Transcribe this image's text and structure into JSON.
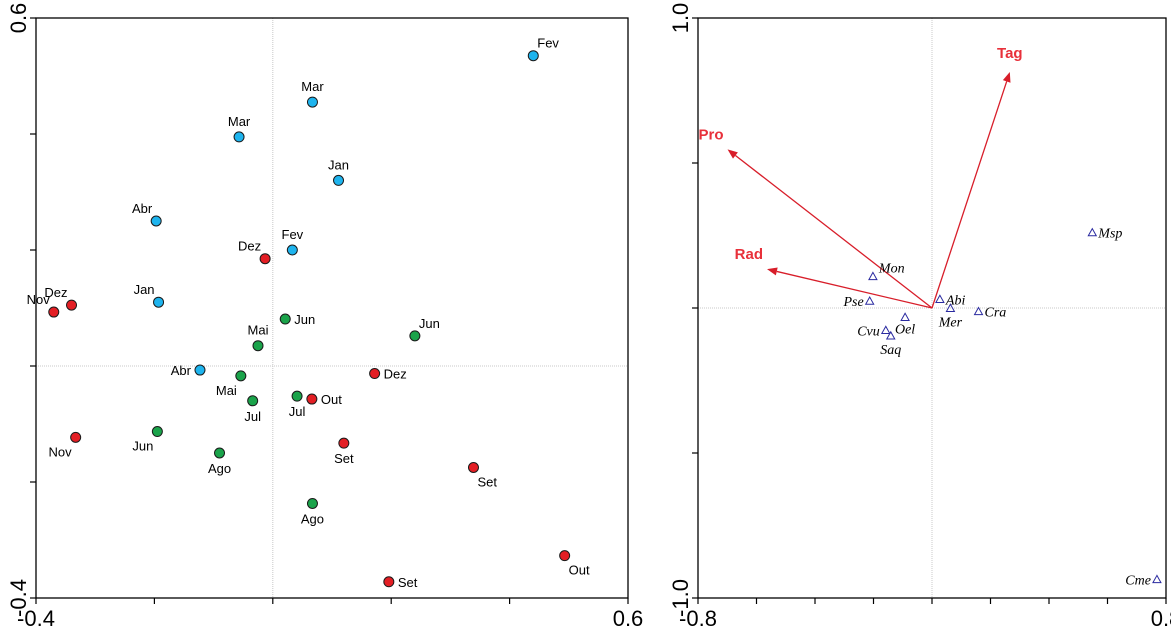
{
  "colors": {
    "blue": "#1eb4ee",
    "green": "#1aa34a",
    "red": "#e31e24",
    "arrow": "#d81e2a",
    "arrowText": "#e8303a",
    "species": "#2a2aa0",
    "zero_line": "#c8c8c8"
  },
  "chart_data": [
    {
      "type": "scatter",
      "xlim": [
        -0.4,
        0.6
      ],
      "ylim": [
        -0.4,
        0.6
      ],
      "grid": false,
      "x_tick_labels": [
        {
          "value": -0.4,
          "label": "-0.4"
        },
        {
          "value": 0.6,
          "label": "0.6"
        }
      ],
      "y_tick_labels": [
        {
          "value": 0.6,
          "label": "0.6"
        },
        {
          "value": -0.4,
          "label": "-0.4"
        }
      ],
      "x_minor_ticks": [
        -0.2,
        0.0,
        0.2,
        0.4
      ],
      "y_minor_ticks": [
        0.4,
        0.2,
        0.0,
        -0.2
      ],
      "points": [
        {
          "label": "Fev",
          "x": 0.44,
          "y": 0.535,
          "color": "blue",
          "label_pos": "above-right"
        },
        {
          "label": "Mar",
          "x": 0.067,
          "y": 0.455,
          "color": "blue",
          "label_pos": "above"
        },
        {
          "label": "Mar",
          "x": -0.057,
          "y": 0.395,
          "color": "blue",
          "label_pos": "above"
        },
        {
          "label": "Jan",
          "x": 0.111,
          "y": 0.32,
          "color": "blue",
          "label_pos": "above"
        },
        {
          "label": "Abr",
          "x": -0.197,
          "y": 0.25,
          "color": "blue",
          "label_pos": "above-left"
        },
        {
          "label": "Fev",
          "x": 0.033,
          "y": 0.2,
          "color": "blue",
          "label_pos": "above"
        },
        {
          "label": "Jan",
          "x": -0.193,
          "y": 0.11,
          "color": "blue",
          "label_pos": "above-left"
        },
        {
          "label": "Abr",
          "x": -0.123,
          "y": -0.007,
          "color": "blue",
          "label_pos": "left"
        },
        {
          "label": "Dez",
          "x": -0.013,
          "y": 0.185,
          "color": "red",
          "label_pos": "above-left"
        },
        {
          "label": "Dez",
          "x": -0.34,
          "y": 0.105,
          "color": "red",
          "label_pos": "above-left"
        },
        {
          "label": "Nov",
          "x": -0.37,
          "y": 0.093,
          "color": "red",
          "label_pos": "above-left"
        },
        {
          "label": "Dez",
          "x": 0.172,
          "y": -0.013,
          "color": "red",
          "label_pos": "right"
        },
        {
          "label": "Out",
          "x": 0.066,
          "y": -0.057,
          "color": "red",
          "label_pos": "right"
        },
        {
          "label": "Nov",
          "x": -0.333,
          "y": -0.123,
          "color": "red",
          "label_pos": "below-left"
        },
        {
          "label": "Set",
          "x": 0.12,
          "y": -0.133,
          "color": "red",
          "label_pos": "below"
        },
        {
          "label": "Set",
          "x": 0.339,
          "y": -0.175,
          "color": "red",
          "label_pos": "below-right"
        },
        {
          "label": "Out",
          "x": 0.493,
          "y": -0.327,
          "color": "red",
          "label_pos": "below-right"
        },
        {
          "label": "Set",
          "x": 0.196,
          "y": -0.372,
          "color": "red",
          "label_pos": "right"
        },
        {
          "label": "Jun",
          "x": 0.021,
          "y": 0.081,
          "color": "green",
          "label_pos": "right"
        },
        {
          "label": "Jun",
          "x": 0.24,
          "y": 0.052,
          "color": "green",
          "label_pos": "above-right"
        },
        {
          "label": "Mai",
          "x": -0.025,
          "y": 0.035,
          "color": "green",
          "label_pos": "above"
        },
        {
          "label": "Mai",
          "x": -0.054,
          "y": -0.017,
          "color": "green",
          "label_pos": "below-left"
        },
        {
          "label": "Jul",
          "x": -0.034,
          "y": -0.06,
          "color": "green",
          "label_pos": "below"
        },
        {
          "label": "Jul",
          "x": 0.041,
          "y": -0.052,
          "color": "green",
          "label_pos": "below"
        },
        {
          "label": "Jun",
          "x": -0.195,
          "y": -0.113,
          "color": "green",
          "label_pos": "below-left"
        },
        {
          "label": "Ago",
          "x": -0.09,
          "y": -0.15,
          "color": "green",
          "label_pos": "below"
        },
        {
          "label": "Ago",
          "x": 0.067,
          "y": -0.237,
          "color": "green",
          "label_pos": "below"
        }
      ]
    },
    {
      "type": "biplot",
      "xlim": [
        -0.8,
        0.8
      ],
      "ylim": [
        -1.0,
        1.0
      ],
      "grid": false,
      "x_tick_labels": [
        {
          "value": -0.8,
          "label": "-0.8"
        },
        {
          "value": 0.8,
          "label": "0.8"
        }
      ],
      "y_tick_labels": [
        {
          "value": 1.0,
          "label": "1.0"
        },
        {
          "value": -1.0,
          "label": "-1.0"
        }
      ],
      "x_minor_ticks": [
        -0.6,
        -0.4,
        -0.2,
        0.0,
        0.2,
        0.4,
        0.6
      ],
      "y_minor_ticks": [
        0.5,
        0.0,
        -0.5
      ],
      "arrows": [
        {
          "label": "Tag",
          "x": 0.266,
          "y": 0.814,
          "label_pos": "above"
        },
        {
          "label": "Pro",
          "x": -0.699,
          "y": 0.547,
          "label_pos": "above-left"
        },
        {
          "label": "Rad",
          "x": -0.564,
          "y": 0.134,
          "label_pos": "above-left"
        }
      ],
      "species": [
        {
          "label": "Msp",
          "x": 0.548,
          "y": 0.26,
          "label_pos": "right"
        },
        {
          "label": "Mon",
          "x": -0.202,
          "y": 0.109,
          "label_pos": "above-right"
        },
        {
          "label": "Pse",
          "x": -0.213,
          "y": 0.024,
          "label_pos": "left"
        },
        {
          "label": "Abi",
          "x": 0.027,
          "y": 0.03,
          "label_pos": "right"
        },
        {
          "label": "Mer",
          "x": 0.063,
          "y": -0.001,
          "label_pos": "below"
        },
        {
          "label": "Cra",
          "x": 0.159,
          "y": -0.012,
          "label_pos": "right"
        },
        {
          "label": "Oel",
          "x": -0.092,
          "y": -0.032,
          "label_pos": "below-center"
        },
        {
          "label": "Cvu",
          "x": -0.158,
          "y": -0.077,
          "label_pos": "left"
        },
        {
          "label": "Saq",
          "x": -0.141,
          "y": -0.096,
          "label_pos": "below"
        },
        {
          "label": "Cme",
          "x": 0.769,
          "y": -0.936,
          "label_pos": "left"
        }
      ]
    }
  ]
}
